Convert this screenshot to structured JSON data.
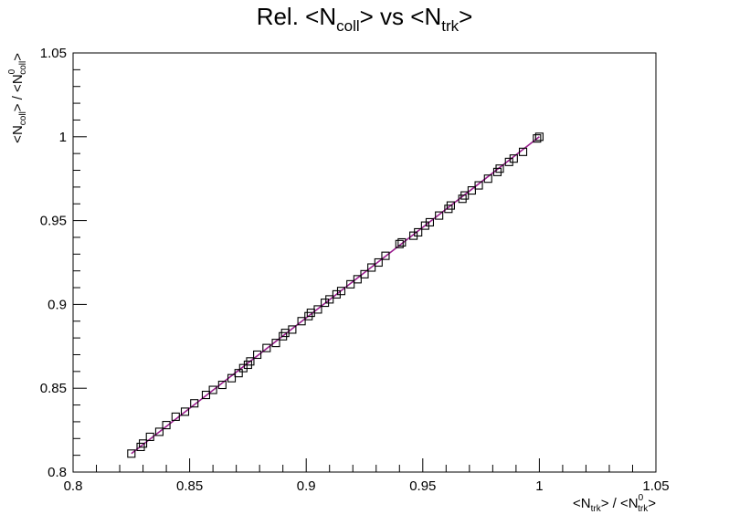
{
  "chart_data": {
    "type": "scatter",
    "title": {
      "main": "Rel. <N",
      "sub1": "coll",
      "mid": "> vs <N",
      "sub2": "trk",
      "end": ">"
    },
    "xlabel": {
      "a": "<N",
      "a_sub": "trk",
      "b": "> / <N",
      "b_sup": "0",
      "b_sub": "trk",
      "c": ">"
    },
    "ylabel": {
      "a": "<N",
      "a_sub": "coll",
      "b": "> / <N",
      "b_sup": "0",
      "b_sub": "coll",
      "c": ">"
    },
    "xlim": [
      0.8,
      1.05
    ],
    "ylim": [
      0.8,
      1.05
    ],
    "xticks": [
      0.8,
      0.85,
      0.9,
      0.95,
      1,
      1.05
    ],
    "yticks": [
      0.8,
      0.85,
      0.9,
      0.95,
      1,
      1.05
    ],
    "xtick_labels": [
      "0.8",
      "0.85",
      "0.9",
      "0.95",
      "1",
      "1.05"
    ],
    "ytick_labels": [
      "0.8",
      "0.85",
      "0.9",
      "0.95",
      "1",
      "1.05"
    ],
    "grid": false,
    "marker": "open-square",
    "marker_color": "#000000",
    "fit_line_color": "#9b1f8f",
    "fit_line": {
      "x": [
        0.825,
        1.0
      ],
      "y": [
        0.811,
        1.0
      ]
    },
    "points": {
      "x": [
        0.825,
        0.829,
        0.83,
        0.833,
        0.837,
        0.84,
        0.844,
        0.848,
        0.852,
        0.857,
        0.86,
        0.864,
        0.868,
        0.871,
        0.873,
        0.875,
        0.876,
        0.879,
        0.883,
        0.887,
        0.89,
        0.891,
        0.894,
        0.898,
        0.901,
        0.902,
        0.905,
        0.908,
        0.91,
        0.913,
        0.915,
        0.919,
        0.922,
        0.925,
        0.928,
        0.931,
        0.934,
        0.94,
        0.941,
        0.946,
        0.948,
        0.951,
        0.953,
        0.957,
        0.961,
        0.962,
        0.967,
        0.968,
        0.971,
        0.974,
        0.978,
        0.982,
        0.983,
        0.987,
        0.989,
        0.993,
        0.999,
        1.0
      ],
      "y": [
        0.811,
        0.815,
        0.817,
        0.821,
        0.824,
        0.828,
        0.833,
        0.836,
        0.841,
        0.846,
        0.849,
        0.852,
        0.856,
        0.859,
        0.862,
        0.864,
        0.866,
        0.87,
        0.874,
        0.877,
        0.881,
        0.883,
        0.885,
        0.89,
        0.893,
        0.895,
        0.897,
        0.901,
        0.903,
        0.906,
        0.908,
        0.912,
        0.915,
        0.918,
        0.922,
        0.925,
        0.929,
        0.936,
        0.937,
        0.941,
        0.943,
        0.947,
        0.949,
        0.953,
        0.957,
        0.959,
        0.963,
        0.965,
        0.968,
        0.971,
        0.975,
        0.979,
        0.981,
        0.985,
        0.987,
        0.991,
        0.999,
        1.0
      ]
    }
  }
}
